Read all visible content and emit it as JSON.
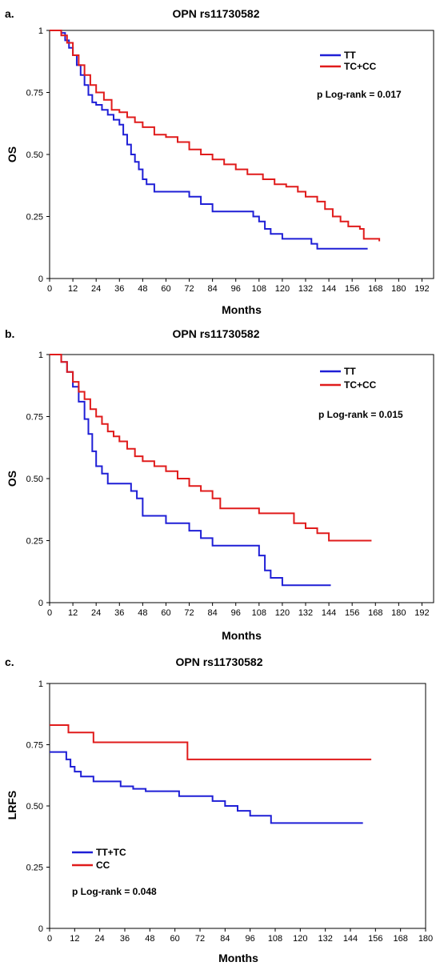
{
  "chart_data": [
    {
      "type": "line",
      "panel_label": "a.",
      "title": "OPN rs11730582",
      "xlabel": "Months",
      "ylabel": "OS",
      "xlim": [
        0,
        198
      ],
      "ylim": [
        0,
        1
      ],
      "x_ticks": [
        "0",
        "12",
        "24",
        "36",
        "48",
        "60",
        "72",
        "84",
        "96",
        "108",
        "120",
        "132",
        "144",
        "156",
        "168",
        "180",
        "192"
      ],
      "y_ticks": [
        "0",
        "0.25",
        "0.50",
        "0.75",
        "1"
      ],
      "legend_position": "top-right",
      "annotation": "p Log-rank = 0.017",
      "series": [
        {
          "name": "TT",
          "color": "#1f1fd6",
          "points": [
            [
              0,
              1
            ],
            [
              6,
              0.99
            ],
            [
              8,
              0.96
            ],
            [
              10,
              0.93
            ],
            [
              12,
              0.9
            ],
            [
              14,
              0.86
            ],
            [
              16,
              0.82
            ],
            [
              18,
              0.78
            ],
            [
              20,
              0.74
            ],
            [
              22,
              0.71
            ],
            [
              24,
              0.7
            ],
            [
              27,
              0.68
            ],
            [
              30,
              0.66
            ],
            [
              33,
              0.64
            ],
            [
              36,
              0.62
            ],
            [
              38,
              0.58
            ],
            [
              40,
              0.54
            ],
            [
              42,
              0.5
            ],
            [
              44,
              0.47
            ],
            [
              46,
              0.44
            ],
            [
              48,
              0.4
            ],
            [
              50,
              0.38
            ],
            [
              54,
              0.35
            ],
            [
              66,
              0.35
            ],
            [
              72,
              0.33
            ],
            [
              78,
              0.3
            ],
            [
              84,
              0.27
            ],
            [
              102,
              0.27
            ],
            [
              105,
              0.25
            ],
            [
              108,
              0.23
            ],
            [
              111,
              0.2
            ],
            [
              114,
              0.18
            ],
            [
              120,
              0.16
            ],
            [
              132,
              0.16
            ],
            [
              135,
              0.14
            ],
            [
              138,
              0.12
            ],
            [
              164,
              0.12
            ]
          ]
        },
        {
          "name": "TC+CC",
          "color": "#e01b1b",
          "points": [
            [
              0,
              1
            ],
            [
              6,
              0.98
            ],
            [
              9,
              0.95
            ],
            [
              12,
              0.9
            ],
            [
              15,
              0.86
            ],
            [
              18,
              0.82
            ],
            [
              21,
              0.78
            ],
            [
              24,
              0.75
            ],
            [
              28,
              0.72
            ],
            [
              32,
              0.68
            ],
            [
              36,
              0.67
            ],
            [
              40,
              0.65
            ],
            [
              44,
              0.63
            ],
            [
              48,
              0.61
            ],
            [
              54,
              0.58
            ],
            [
              60,
              0.57
            ],
            [
              66,
              0.55
            ],
            [
              72,
              0.52
            ],
            [
              78,
              0.5
            ],
            [
              84,
              0.48
            ],
            [
              90,
              0.46
            ],
            [
              96,
              0.44
            ],
            [
              102,
              0.42
            ],
            [
              108,
              0.42
            ],
            [
              110,
              0.4
            ],
            [
              116,
              0.38
            ],
            [
              122,
              0.37
            ],
            [
              128,
              0.35
            ],
            [
              132,
              0.33
            ],
            [
              138,
              0.31
            ],
            [
              142,
              0.28
            ],
            [
              146,
              0.25
            ],
            [
              150,
              0.23
            ],
            [
              154,
              0.21
            ],
            [
              160,
              0.2
            ],
            [
              162,
              0.16
            ],
            [
              170,
              0.15
            ]
          ]
        }
      ]
    },
    {
      "type": "line",
      "panel_label": "b.",
      "title": "OPN rs11730582",
      "xlabel": "Months",
      "ylabel": "OS",
      "xlim": [
        0,
        198
      ],
      "ylim": [
        0,
        1
      ],
      "x_ticks": [
        "0",
        "12",
        "24",
        "36",
        "48",
        "60",
        "72",
        "84",
        "96",
        "108",
        "120",
        "132",
        "144",
        "156",
        "168",
        "180",
        "192"
      ],
      "y_ticks": [
        "0",
        "0.25",
        "0.50",
        "0.75",
        "1"
      ],
      "legend_position": "top-right",
      "annotation": "p Log-rank = 0.015",
      "series": [
        {
          "name": "TT",
          "color": "#1f1fd6",
          "points": [
            [
              0,
              1
            ],
            [
              6,
              0.97
            ],
            [
              9,
              0.93
            ],
            [
              12,
              0.87
            ],
            [
              15,
              0.81
            ],
            [
              18,
              0.74
            ],
            [
              20,
              0.68
            ],
            [
              22,
              0.61
            ],
            [
              24,
              0.55
            ],
            [
              27,
              0.52
            ],
            [
              30,
              0.48
            ],
            [
              42,
              0.45
            ],
            [
              45,
              0.42
            ],
            [
              48,
              0.35
            ],
            [
              60,
              0.32
            ],
            [
              72,
              0.29
            ],
            [
              78,
              0.26
            ],
            [
              84,
              0.23
            ],
            [
              108,
              0.19
            ],
            [
              111,
              0.13
            ],
            [
              114,
              0.1
            ],
            [
              120,
              0.07
            ],
            [
              145,
              0.07
            ]
          ]
        },
        {
          "name": "TC+CC",
          "color": "#e01b1b",
          "points": [
            [
              0,
              1
            ],
            [
              6,
              0.97
            ],
            [
              9,
              0.93
            ],
            [
              12,
              0.89
            ],
            [
              15,
              0.85
            ],
            [
              18,
              0.82
            ],
            [
              21,
              0.78
            ],
            [
              24,
              0.75
            ],
            [
              27,
              0.72
            ],
            [
              30,
              0.69
            ],
            [
              33,
              0.67
            ],
            [
              36,
              0.65
            ],
            [
              40,
              0.62
            ],
            [
              44,
              0.59
            ],
            [
              48,
              0.57
            ],
            [
              54,
              0.55
            ],
            [
              60,
              0.53
            ],
            [
              66,
              0.5
            ],
            [
              72,
              0.47
            ],
            [
              78,
              0.45
            ],
            [
              84,
              0.42
            ],
            [
              88,
              0.38
            ],
            [
              96,
              0.38
            ],
            [
              108,
              0.36
            ],
            [
              120,
              0.36
            ],
            [
              126,
              0.32
            ],
            [
              132,
              0.3
            ],
            [
              138,
              0.28
            ],
            [
              144,
              0.25
            ],
            [
              166,
              0.25
            ]
          ]
        }
      ]
    },
    {
      "type": "line",
      "panel_label": "c.",
      "title": "OPN rs11730582",
      "xlabel": "Months",
      "ylabel": "LRFS",
      "xlim": [
        0,
        180
      ],
      "ylim": [
        0,
        1
      ],
      "x_ticks": [
        "0",
        "12",
        "24",
        "36",
        "48",
        "60",
        "72",
        "84",
        "96",
        "108",
        "120",
        "132",
        "144",
        "156",
        "168",
        "180"
      ],
      "y_ticks": [
        "0",
        "0.25",
        "0.50",
        "0.75",
        "1"
      ],
      "legend_position": "bottom-left",
      "annotation": "p Log-rank = 0.048",
      "series": [
        {
          "name": "TT+TC",
          "color": "#1f1fd6",
          "points": [
            [
              0,
              0.72
            ],
            [
              6,
              0.72
            ],
            [
              8,
              0.69
            ],
            [
              10,
              0.66
            ],
            [
              12,
              0.64
            ],
            [
              15,
              0.62
            ],
            [
              21,
              0.6
            ],
            [
              34,
              0.58
            ],
            [
              40,
              0.57
            ],
            [
              46,
              0.56
            ],
            [
              62,
              0.54
            ],
            [
              78,
              0.52
            ],
            [
              84,
              0.5
            ],
            [
              90,
              0.48
            ],
            [
              96,
              0.46
            ],
            [
              106,
              0.43
            ],
            [
              150,
              0.43
            ]
          ]
        },
        {
          "name": "CC",
          "color": "#e01b1b",
          "points": [
            [
              0,
              0.83
            ],
            [
              9,
              0.83
            ],
            [
              9,
              0.8
            ],
            [
              21,
              0.8
            ],
            [
              21,
              0.76
            ],
            [
              66,
              0.76
            ],
            [
              66,
              0.69
            ],
            [
              154,
              0.69
            ]
          ]
        }
      ]
    }
  ]
}
